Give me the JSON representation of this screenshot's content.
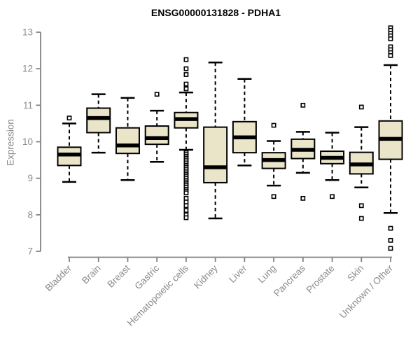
{
  "chart_data": {
    "type": "boxplot",
    "title": "ENSG00000131828 - PDHA1",
    "ylabel": "Expression",
    "xlabel": "",
    "ylim": [
      7,
      13.3
    ],
    "yticks": [
      7,
      8,
      9,
      10,
      11,
      12,
      13
    ],
    "grid": false,
    "legend": "none",
    "categories": [
      "Bladder",
      "Brain",
      "Breast",
      "Gastric",
      "Hematopoietic cells",
      "Kidney",
      "Liver",
      "Lung",
      "Pancreas",
      "Prostate",
      "Skin",
      "Unknown / Other"
    ],
    "boxes": [
      {
        "category": "Bladder",
        "low": 8.9,
        "q1": 9.35,
        "median": 9.65,
        "q3": 9.85,
        "high": 10.5,
        "outliers": [
          10.65
        ]
      },
      {
        "category": "Brain",
        "low": 9.7,
        "q1": 10.25,
        "median": 10.65,
        "q3": 10.92,
        "high": 11.3,
        "outliers": []
      },
      {
        "category": "Breast",
        "low": 8.95,
        "q1": 9.68,
        "median": 9.9,
        "q3": 10.38,
        "high": 11.2,
        "outliers": []
      },
      {
        "category": "Gastric",
        "low": 9.45,
        "q1": 9.93,
        "median": 10.1,
        "q3": 10.43,
        "high": 10.85,
        "outliers": [
          11.3
        ]
      },
      {
        "category": "Hematopoietic cells",
        "low": 9.78,
        "q1": 10.38,
        "median": 10.62,
        "q3": 10.8,
        "high": 11.35,
        "outliers": [
          12.25,
          12.0,
          11.84,
          11.58,
          11.45,
          9.7,
          9.65,
          9.6,
          9.55,
          9.5,
          9.45,
          9.4,
          9.35,
          9.3,
          9.25,
          9.2,
          9.15,
          9.1,
          9.05,
          9.0,
          8.95,
          8.9,
          8.85,
          8.8,
          8.75,
          8.7,
          8.65,
          8.6,
          8.45,
          8.35,
          8.25,
          8.12,
          8.0,
          7.92
        ]
      },
      {
        "category": "Kidney",
        "low": 7.9,
        "q1": 8.88,
        "median": 9.3,
        "q3": 10.4,
        "high": 12.17,
        "outliers": []
      },
      {
        "category": "Liver",
        "low": 9.35,
        "q1": 9.7,
        "median": 10.12,
        "q3": 10.55,
        "high": 11.72,
        "outliers": []
      },
      {
        "category": "Lung",
        "low": 8.8,
        "q1": 9.27,
        "median": 9.5,
        "q3": 9.7,
        "high": 10.02,
        "outliers": [
          10.45,
          8.5
        ]
      },
      {
        "category": "Pancreas",
        "low": 9.15,
        "q1": 9.54,
        "median": 9.78,
        "q3": 10.07,
        "high": 10.27,
        "outliers": [
          11.0,
          8.45
        ]
      },
      {
        "category": "Prostate",
        "low": 8.95,
        "q1": 9.4,
        "median": 9.56,
        "q3": 9.74,
        "high": 10.25,
        "outliers": [
          8.5
        ]
      },
      {
        "category": "Skin",
        "low": 8.75,
        "q1": 9.12,
        "median": 9.38,
        "q3": 9.71,
        "high": 10.4,
        "outliers": [
          10.95,
          8.25,
          7.9
        ]
      },
      {
        "category": "Unknown / Other",
        "low": 8.05,
        "q1": 9.52,
        "median": 10.08,
        "q3": 10.57,
        "high": 12.1,
        "outliers": [
          13.12,
          13.05,
          12.97,
          12.9,
          12.82,
          12.6,
          12.52,
          12.44,
          12.36,
          7.63,
          7.3,
          7.08
        ]
      }
    ],
    "colors": {
      "box_fill": "#EAE5C9",
      "box_stroke": "#000000",
      "median_color": "#000000",
      "whisker_color": "#000000",
      "outlier_color": "#000000",
      "axis_color": "#828282",
      "tick_label_color": "#8a8a8a",
      "title_color": "#000000",
      "background": "#ffffff"
    }
  }
}
